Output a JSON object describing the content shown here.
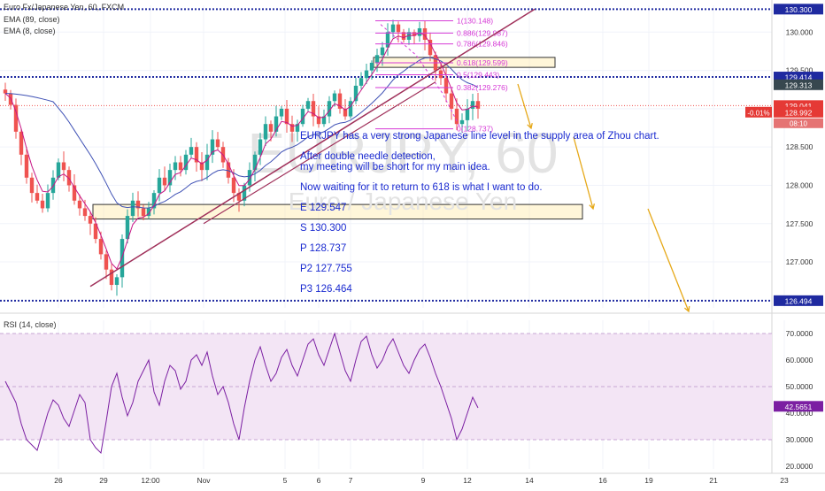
{
  "chart_data": [
    {
      "type": "candlestick",
      "symbol": "Euro Fx/Japanese Yen, 60, FXCM",
      "watermark_symbol": "EURJPY, 60",
      "watermark_name": "Euro / Japanese Yen",
      "indicators": [
        "EMA (89, close)",
        "EMA (8, close)"
      ],
      "x_ticks": [
        "26",
        "29",
        "12:00",
        "Nov",
        "5",
        "6",
        "7",
        "9",
        "12",
        "14",
        "16",
        "19",
        "21",
        "23"
      ],
      "y_ticks": [
        "130.000",
        "129.500",
        "129.000",
        "128.500",
        "128.000",
        "127.500",
        "127.000"
      ],
      "ylim": [
        126.4,
        130.35
      ],
      "price_badges": [
        {
          "value": "130.300",
          "y": 130.3,
          "color": "#1f2aa0"
        },
        {
          "value": "129.414",
          "y": 129.414,
          "color": "#1f2aa0"
        },
        {
          "value": "129.313",
          "y": 129.313,
          "color": "#37474f"
        },
        {
          "value": "129.041",
          "y": 129.041,
          "color": "#e53935"
        },
        {
          "value": "128.992",
          "y": 128.955,
          "color": "#e53935"
        },
        {
          "value": "126.494",
          "y": 126.494,
          "color": "#1f2aa0"
        }
      ],
      "change_percent": "-0.01%",
      "countdown": "08:10",
      "fib_levels": [
        {
          "label": "1(130.148)",
          "value": 130.148
        },
        {
          "label": "0.886(129.987)",
          "value": 129.987
        },
        {
          "label": "0.786(129.846)",
          "value": 129.846
        },
        {
          "label": "0.618(129.599)",
          "value": 129.599
        },
        {
          "label": "0.5(129.443)",
          "value": 129.443
        },
        {
          "label": "0.382(129.276)",
          "value": 129.276
        },
        {
          "label": "0(128.737)",
          "value": 128.737
        }
      ],
      "horizontal_levels": [
        130.3,
        129.414,
        126.494
      ],
      "zones": [
        {
          "from": 129.54,
          "to": 129.67
        },
        {
          "from": 127.56,
          "to": 127.75
        }
      ],
      "close_series": [
        129.2,
        129.05,
        128.7,
        128.4,
        128.1,
        127.9,
        127.8,
        127.7,
        127.9,
        128.1,
        128.3,
        128.2,
        128.0,
        127.8,
        127.7,
        127.6,
        127.5,
        127.3,
        127.1,
        126.9,
        126.7,
        126.8,
        127.3,
        127.6,
        127.8,
        127.7,
        127.6,
        127.7,
        127.9,
        128.1,
        128.0,
        128.2,
        128.3,
        128.2,
        128.4,
        128.5,
        128.3,
        128.2,
        128.4,
        128.6,
        128.5,
        128.3,
        128.1,
        127.9,
        127.8,
        128.0,
        128.2,
        128.4,
        128.6,
        128.8,
        128.7,
        128.9,
        129.0,
        128.8,
        128.7,
        128.8,
        129.0,
        129.1,
        128.9,
        128.8,
        128.9,
        129.1,
        129.2,
        129.0,
        128.9,
        129.1,
        129.3,
        129.4,
        129.5,
        129.6,
        129.7,
        129.8,
        130.0,
        130.1,
        130.0,
        129.9,
        130.0,
        129.95,
        130.05,
        129.9,
        129.7,
        129.5,
        129.4,
        129.2,
        129.0,
        128.8,
        128.85,
        129.0,
        129.1,
        129.0
      ]
    },
    {
      "type": "line",
      "title": "RSI (14, close)",
      "ylim": [
        19,
        75
      ],
      "y_ticks": [
        "70.0000",
        "60.0000",
        "50.0000",
        "40.0000",
        "30.0000",
        "20.0000"
      ],
      "current": "42.5651",
      "values": [
        52,
        48,
        44,
        36,
        30,
        28,
        26,
        33,
        40,
        45,
        43,
        38,
        35,
        41,
        47,
        44,
        30,
        27,
        25,
        37,
        50,
        55,
        46,
        39,
        44,
        52,
        56,
        60,
        48,
        43,
        52,
        58,
        56,
        49,
        52,
        60,
        62,
        58,
        63,
        54,
        47,
        50,
        44,
        36,
        30,
        42,
        52,
        60,
        65,
        58,
        52,
        55,
        61,
        64,
        58,
        54,
        60,
        66,
        68,
        62,
        58,
        64,
        70,
        63,
        56,
        52,
        60,
        67,
        69,
        62,
        57,
        60,
        65,
        68,
        63,
        58,
        55,
        60,
        64,
        66,
        61,
        55,
        50,
        44,
        38,
        30,
        34,
        40,
        46,
        42
      ]
    }
  ],
  "legend": {
    "title": "Euro Fx/Japanese Yen, 60, FXCM",
    "ema89": "EMA (89, close)",
    "ema8": "EMA (8, close)",
    "rsi": "RSI (14, close)"
  },
  "notes": [
    "EURJPY has a very strong Japanese line level in the supply area of Zhou chart.",
    "After double needle detection,",
    " my meeting will be short for my main idea.",
    "Now waiting for it to return to 618 is what I want to do.",
    "E 129.547",
    "S 130.300",
    "P 128.737",
    "P2 127.755",
    "P3 126.464"
  ],
  "colors": {
    "up": "#26a69a",
    "down": "#ef5350",
    "ema89": "#3f51b5",
    "ema8": "#c71585",
    "trendline": "#a0305a",
    "fib": "#d63ad6",
    "level": "#1f2aa0",
    "rsi_line": "#7b1fa2",
    "rsi_band": "#f3e5f5",
    "arrow": "#e6a817"
  }
}
